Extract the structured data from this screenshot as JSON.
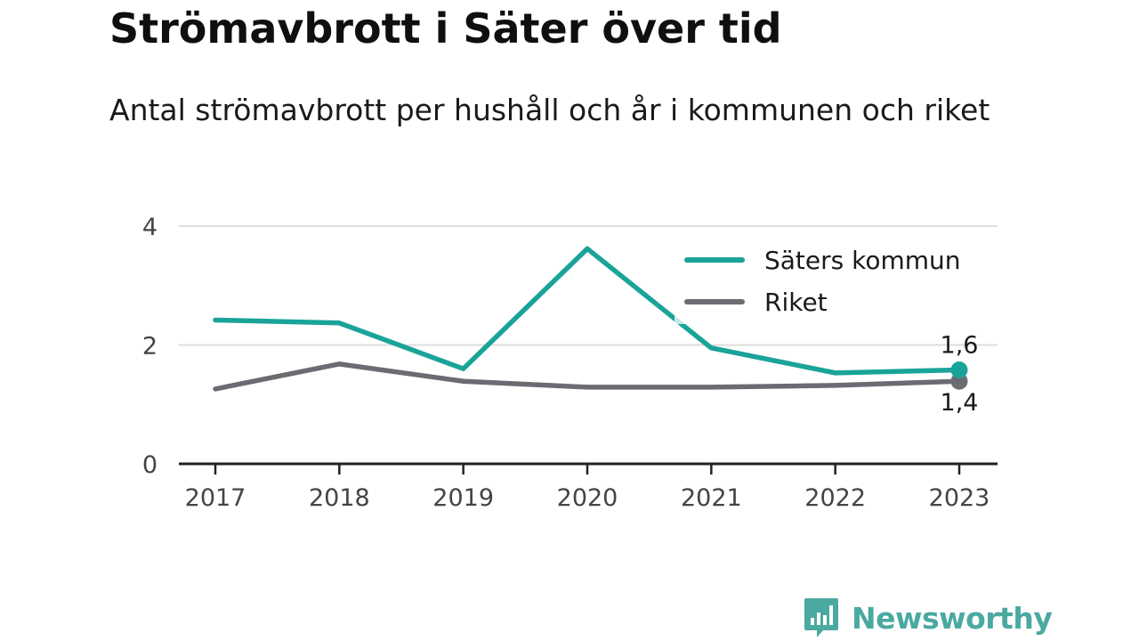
{
  "title": "Strömavbrott i Säter över tid",
  "subtitle": "Antal strömavbrott per hushåll och år i kommunen och riket",
  "brand": {
    "name": "Newsworthy",
    "icon": "bar-chart-bubble-icon",
    "color": "#4aa9a0"
  },
  "colors": {
    "saters": "#1aa399",
    "riket": "#6b6b72",
    "grid": "#dddddd",
    "axis": "#222222"
  },
  "chart_data": {
    "type": "line",
    "x": [
      2017,
      2018,
      2019,
      2020,
      2021,
      2022,
      2023
    ],
    "x_tick_labels": [
      "2017",
      "2018",
      "2019",
      "2020",
      "2021",
      "2022",
      "2023"
    ],
    "ylim": [
      0,
      4
    ],
    "y_ticks": [
      0,
      2,
      4
    ],
    "y_tick_labels": [
      "0",
      "2",
      "4"
    ],
    "grid": true,
    "legend_position": "top-right",
    "series": [
      {
        "name": "Säters kommun",
        "color": "#1aa399",
        "values": [
          2.42,
          2.37,
          1.6,
          3.62,
          1.95,
          1.53,
          1.58
        ],
        "end_label": "1,6"
      },
      {
        "name": "Riket",
        "color": "#6b6b72",
        "values": [
          1.26,
          1.68,
          1.39,
          1.29,
          1.29,
          1.32,
          1.39
        ],
        "end_label": "1,4"
      }
    ]
  }
}
